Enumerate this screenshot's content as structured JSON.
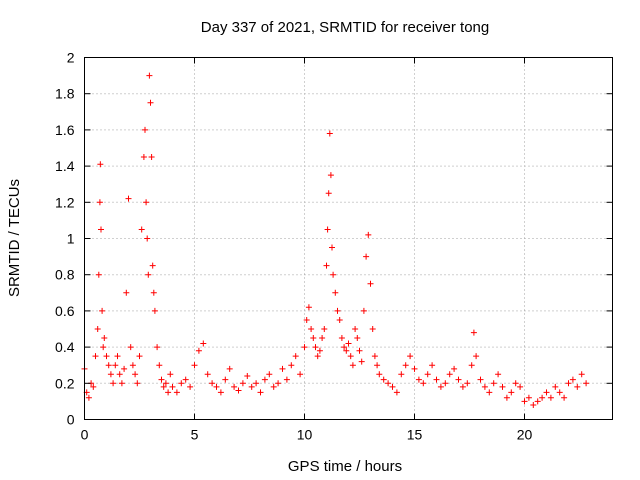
{
  "chart_data": {
    "type": "scatter",
    "title": "Day 337 of 2021, SRMTID for receiver tong",
    "xlabel": "GPS time / hours",
    "ylabel": "SRMTID / TECUs",
    "xlim": [
      0,
      24
    ],
    "ylim": [
      0,
      2
    ],
    "xticks": [
      "0",
      "5",
      "10",
      "15",
      "20"
    ],
    "xtick_values": [
      0,
      5,
      10,
      15,
      20
    ],
    "yticks": [
      "0",
      "0.2",
      "0.4",
      "0.6",
      "0.8",
      "1",
      "1.2",
      "1.4",
      "1.6",
      "1.8",
      "2"
    ],
    "ytick_values": [
      0,
      0.2,
      0.4,
      0.6,
      0.8,
      1.0,
      1.2,
      1.4,
      1.6,
      1.8,
      2.0
    ],
    "grid": true,
    "marker": "+",
    "color": "#ff0000",
    "series": [
      {
        "name": "SRMTID",
        "x": [
          0.0,
          0.1,
          0.2,
          0.3,
          0.4,
          0.5,
          0.6,
          0.65,
          0.7,
          0.72,
          0.75,
          0.8,
          0.85,
          0.9,
          1.0,
          1.1,
          1.2,
          1.3,
          1.4,
          1.5,
          1.6,
          1.7,
          1.8,
          1.9,
          2.0,
          2.1,
          2.2,
          2.3,
          2.4,
          2.5,
          2.6,
          2.7,
          2.75,
          2.8,
          2.85,
          2.9,
          2.95,
          3.0,
          3.05,
          3.1,
          3.15,
          3.2,
          3.3,
          3.4,
          3.5,
          3.6,
          3.7,
          3.8,
          3.9,
          4.0,
          4.2,
          4.4,
          4.6,
          4.8,
          5.0,
          5.2,
          5.4,
          5.6,
          5.8,
          6.0,
          6.2,
          6.4,
          6.6,
          6.8,
          7.0,
          7.2,
          7.4,
          7.6,
          7.8,
          8.0,
          8.2,
          8.4,
          8.6,
          8.8,
          9.0,
          9.2,
          9.4,
          9.6,
          9.8,
          10.0,
          10.1,
          10.2,
          10.3,
          10.4,
          10.5,
          10.6,
          10.7,
          10.8,
          10.9,
          11.0,
          11.05,
          11.1,
          11.15,
          11.2,
          11.25,
          11.3,
          11.4,
          11.5,
          11.6,
          11.7,
          11.8,
          11.9,
          12.0,
          12.1,
          12.2,
          12.3,
          12.4,
          12.5,
          12.6,
          12.7,
          12.8,
          12.9,
          13.0,
          13.1,
          13.2,
          13.3,
          13.4,
          13.6,
          13.8,
          14.0,
          14.2,
          14.4,
          14.6,
          14.8,
          15.0,
          15.2,
          15.4,
          15.6,
          15.8,
          16.0,
          16.2,
          16.4,
          16.6,
          16.8,
          17.0,
          17.2,
          17.4,
          17.6,
          17.7,
          17.8,
          18.0,
          18.2,
          18.4,
          18.6,
          18.8,
          19.0,
          19.2,
          19.4,
          19.6,
          19.8,
          20.0,
          20.2,
          20.4,
          20.6,
          20.8,
          21.0,
          21.2,
          21.4,
          21.6,
          21.8,
          22.0,
          22.2,
          22.4,
          22.6,
          22.8
        ],
        "y": [
          0.28,
          0.15,
          0.12,
          0.2,
          0.18,
          0.35,
          0.5,
          0.8,
          1.2,
          1.41,
          1.05,
          0.6,
          0.4,
          0.45,
          0.35,
          0.3,
          0.25,
          0.2,
          0.3,
          0.35,
          0.25,
          0.2,
          0.28,
          0.7,
          1.22,
          0.4,
          0.3,
          0.25,
          0.2,
          0.35,
          1.05,
          1.45,
          1.6,
          1.2,
          1.0,
          0.8,
          1.9,
          1.75,
          1.45,
          0.85,
          0.7,
          0.6,
          0.4,
          0.3,
          0.22,
          0.18,
          0.2,
          0.15,
          0.25,
          0.18,
          0.15,
          0.2,
          0.22,
          0.18,
          0.3,
          0.38,
          0.42,
          0.25,
          0.2,
          0.18,
          0.15,
          0.22,
          0.28,
          0.18,
          0.16,
          0.2,
          0.24,
          0.18,
          0.2,
          0.15,
          0.22,
          0.25,
          0.18,
          0.2,
          0.28,
          0.22,
          0.3,
          0.35,
          0.25,
          0.4,
          0.55,
          0.62,
          0.5,
          0.45,
          0.4,
          0.35,
          0.38,
          0.45,
          0.5,
          0.85,
          1.05,
          1.25,
          1.58,
          1.35,
          0.95,
          0.8,
          0.7,
          0.6,
          0.55,
          0.45,
          0.4,
          0.38,
          0.42,
          0.35,
          0.3,
          0.5,
          0.45,
          0.38,
          0.32,
          0.6,
          0.9,
          1.02,
          0.75,
          0.5,
          0.35,
          0.3,
          0.25,
          0.22,
          0.2,
          0.18,
          0.15,
          0.25,
          0.3,
          0.35,
          0.28,
          0.22,
          0.2,
          0.25,
          0.3,
          0.22,
          0.18,
          0.2,
          0.25,
          0.28,
          0.22,
          0.18,
          0.2,
          0.3,
          0.48,
          0.35,
          0.22,
          0.18,
          0.15,
          0.2,
          0.25,
          0.18,
          0.12,
          0.15,
          0.2,
          0.18,
          0.1,
          0.12,
          0.08,
          0.1,
          0.12,
          0.15,
          0.12,
          0.18,
          0.15,
          0.12,
          0.2,
          0.22,
          0.18,
          0.25,
          0.2
        ]
      }
    ]
  }
}
